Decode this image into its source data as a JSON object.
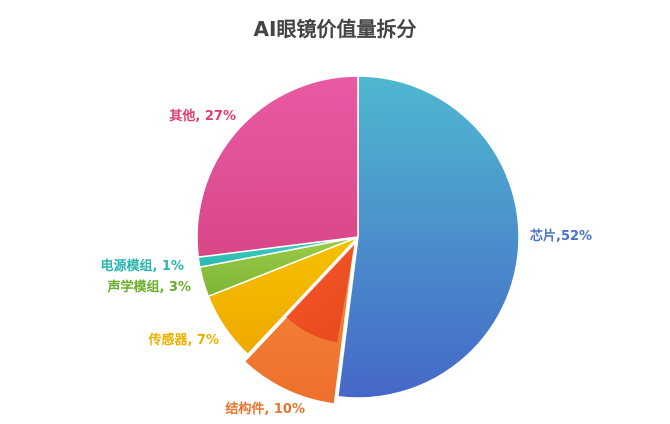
{
  "chart_data": {
    "type": "pie",
    "title": "AI眼镜价值量拆分",
    "slices": [
      {
        "name": "芯片",
        "value": 52,
        "label": "芯片,52%",
        "color_start": "#4FB8CF",
        "color_end": "#4667C8",
        "label_color": "#4A73C8"
      },
      {
        "name": "结构件",
        "value": 10,
        "label": "结构件, 10%",
        "color_start": "#F28A3A",
        "color_end": "#EE6F2C",
        "label_color": "#E8742C"
      },
      {
        "name": "传感器",
        "value": 7,
        "label": "传感器, 7%",
        "color_start": "#F5C200",
        "color_end": "#EFA800",
        "label_color": "#E8B200"
      },
      {
        "name": "声学模组",
        "value": 3,
        "label": "声学模组, 3%",
        "color_start": "#9CCB48",
        "color_end": "#7DB535",
        "label_color": "#6BAE2D"
      },
      {
        "name": "电源模组",
        "value": 1,
        "label": "电源模组, 1%",
        "color_start": "#45CFC3",
        "color_end": "#27B8B0",
        "label_color": "#2BB5AE"
      },
      {
        "name": "其他",
        "value": 27,
        "label": "其他, 27%",
        "color_start": "#E85AA3",
        "color_end": "#D94788",
        "label_color": "#E0406E"
      }
    ],
    "highlight": {
      "name": "结构件",
      "color_start": "#F5441E",
      "color_end": "#E43B1B"
    }
  }
}
